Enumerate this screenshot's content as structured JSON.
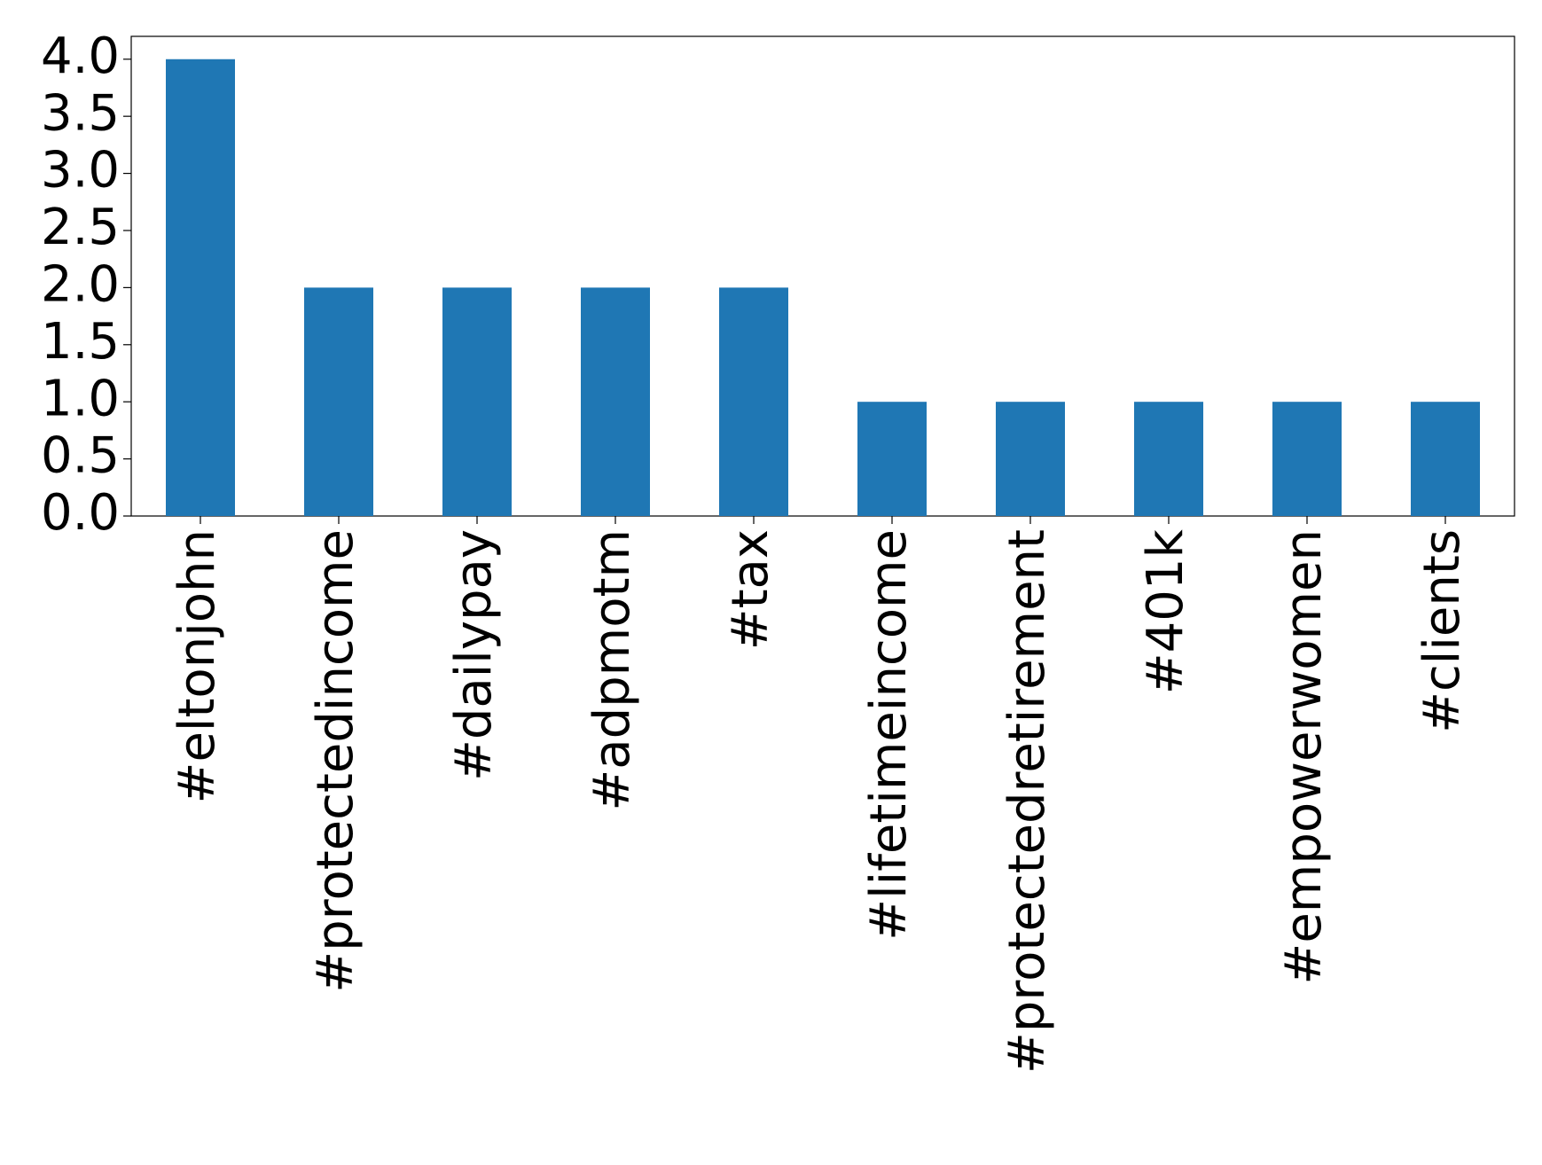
{
  "chart_data": {
    "type": "bar",
    "categories": [
      "#eltonjohn",
      "#protectedincome",
      "#dailypay",
      "#adpmotm",
      "#tax",
      "#lifetimeincome",
      "#protectedretirement",
      "#401k",
      "#empowerwomen",
      "#clients"
    ],
    "values": [
      4,
      2,
      2,
      2,
      2,
      1,
      1,
      1,
      1,
      1
    ],
    "color": "#1f77b4",
    "ylim": [
      0,
      4.2
    ],
    "yticks": [
      {
        "value": 0,
        "label": "0.0"
      },
      {
        "value": 0.5,
        "label": "0.5"
      },
      {
        "value": 1,
        "label": "1.0"
      },
      {
        "value": 1.5,
        "label": "1.5"
      },
      {
        "value": 2,
        "label": "2.0"
      },
      {
        "value": 2.5,
        "label": "2.5"
      },
      {
        "value": 3,
        "label": "3.0"
      },
      {
        "value": 3.5,
        "label": "3.5"
      },
      {
        "value": 4,
        "label": "4.0"
      }
    ],
    "grid": false
  }
}
